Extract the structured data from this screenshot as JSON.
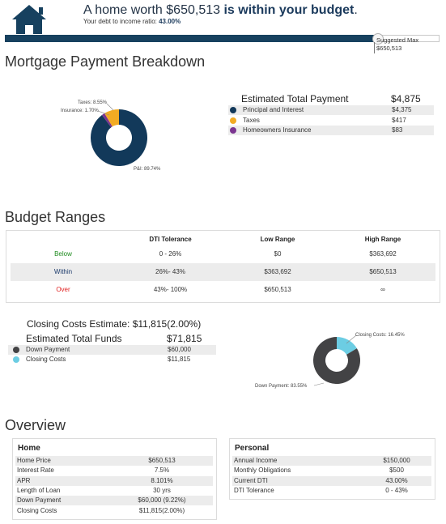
{
  "header": {
    "headline_prefix": "A home worth $650,513 ",
    "headline_emphasis": "is within your budget",
    "headline_suffix": ".",
    "dti_prefix": "Your debt to income ratio: ",
    "dti_value": "43.00%",
    "suggested_max_label": "Suggested Max",
    "suggested_max_value": "$650,513",
    "budget_fill_percent": 85.6
  },
  "mortgage": {
    "title": "Mortgage Payment Breakdown",
    "total_label": "Estimated Total Payment",
    "total_value": "$4,875",
    "items": [
      {
        "label": "Principal and Interest",
        "amount": "$4,375",
        "color": "#12395a"
      },
      {
        "label": "Taxes",
        "amount": "$417",
        "color": "#f2ab23"
      },
      {
        "label": "Homeowners Insurance",
        "amount": "$83",
        "color": "#7b3590"
      }
    ],
    "donut_labels": {
      "taxes": "Taxes: 8.55%",
      "insurance": "Insurance: 1.70%",
      "pi": "P&I: 89.74%"
    }
  },
  "chart_data": [
    {
      "type": "pie",
      "categories": [
        "P&I",
        "Taxes",
        "Insurance"
      ],
      "values": [
        89.74,
        8.55,
        1.7
      ],
      "colors": [
        "#12395a",
        "#f2ab23",
        "#7b3590"
      ]
    },
    {
      "type": "pie",
      "categories": [
        "Down Payment",
        "Closing Costs"
      ],
      "values": [
        83.55,
        16.45
      ],
      "colors": [
        "#434345",
        "#6ccde3"
      ]
    }
  ],
  "ranges": {
    "title": "Budget Ranges",
    "columns": [
      "",
      "DTI Tolerance",
      "Low Range",
      "High Range"
    ],
    "rows": [
      {
        "label": "Below",
        "color": "#1d8a1d",
        "dti": "0 - 26%",
        "low": "$0",
        "high": "$363,692"
      },
      {
        "label": "Within",
        "color": "#1b3a6b",
        "dti": "26%- 43%",
        "low": "$363,692",
        "high": "$650,513"
      },
      {
        "label": "Over",
        "color": "#e02020",
        "dti": "43%- 100%",
        "low": "$650,513",
        "high": "∞"
      }
    ]
  },
  "closing": {
    "title": "Closing Costs Estimate: $11,815(2.00%)",
    "funds_label": "Estimated Total Funds",
    "funds_value": "$71,815",
    "items": [
      {
        "label": "Down Payment",
        "amount": "$60,000",
        "color": "#434345"
      },
      {
        "label": "Closing Costs",
        "amount": "$11,815",
        "color": "#6ccde3"
      }
    ],
    "donut_labels": {
      "closing": "Closing Costs: 16.45%",
      "down": "Down Payment: 83.55%"
    }
  },
  "overview": {
    "title": "Overview",
    "home": {
      "title": "Home",
      "rows": [
        {
          "k": "Home Price",
          "v": "$650,513"
        },
        {
          "k": "Interest Rate",
          "v": "7.5%"
        },
        {
          "k": "APR",
          "v": "8.101%"
        },
        {
          "k": "Length of Loan",
          "v": "30 yrs"
        },
        {
          "k": "Down Payment",
          "v": "$60,000 (9.22%)"
        },
        {
          "k": "Closing Costs",
          "v": "$11,815(2.00%)"
        }
      ]
    },
    "personal": {
      "title": "Personal",
      "rows": [
        {
          "k": "Annual Income",
          "v": "$150,000"
        },
        {
          "k": "Monthly Obligations",
          "v": "$500"
        },
        {
          "k": "Current DTI",
          "v": "43.00%"
        },
        {
          "k": "DTI Tolerance",
          "v": "0 - 43%"
        }
      ]
    }
  }
}
